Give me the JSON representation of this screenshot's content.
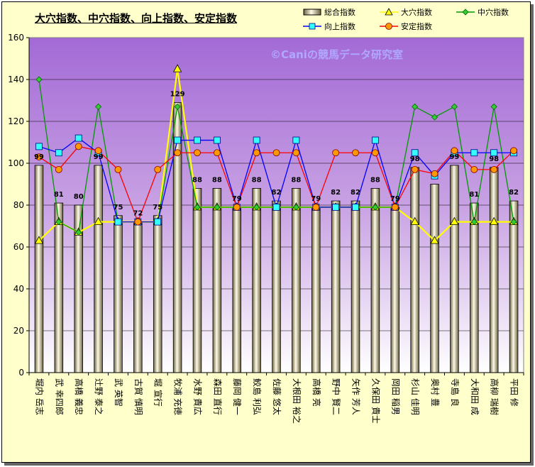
{
  "chart_data": {
    "type": "bar",
    "title": "大穴指数、中穴指数、向上指数、安定指数",
    "watermark": "©Caniの競馬データ研究室",
    "ylim": [
      0,
      160
    ],
    "yticks": [
      0,
      20,
      40,
      60,
      80,
      100,
      120,
      140,
      160
    ],
    "categories": [
      "堀内 岳志",
      "武 幸四郎",
      "高橋 義忠",
      "辻野 泰之",
      "武 英智",
      "古賀 慎明",
      "堀 宣行",
      "牧浦 充徳",
      "水野 貴広",
      "森田 直行",
      "藤岡 健一",
      "鮫島 利弘",
      "佐藤 悠太",
      "大根田 裕之",
      "高橋 亮",
      "野中 賢二",
      "矢作 芳人",
      "久保田 貴士",
      "岡田 稲男",
      "杉山 佳明",
      "奥村 豊",
      "寺島 良",
      "大和田 成",
      "高柳 瑞樹",
      "平田 修"
    ],
    "series": [
      {
        "name": "総合指数",
        "type": "bar",
        "color": "#e8dfc0",
        "values": [
          99,
          81,
          80,
          99,
          75,
          72,
          75,
          129,
          88,
          88,
          79,
          88,
          82,
          88,
          79,
          82,
          82,
          88,
          79,
          98,
          90,
          99,
          81,
          98,
          82
        ],
        "labels": [
          "99",
          "81",
          "80",
          "99",
          "75",
          "72",
          "75",
          "129",
          "88",
          "88",
          "79",
          "88",
          "82",
          "88",
          "79",
          "82",
          "82",
          "88",
          "79",
          "98",
          "",
          "99",
          "81",
          "98",
          "82"
        ]
      },
      {
        "name": "大穴指数",
        "type": "line",
        "color": "#ffff00",
        "marker": "triangle",
        "values": [
          63,
          72,
          67,
          72,
          72,
          72,
          72,
          145,
          79,
          79,
          79,
          79,
          79,
          79,
          79,
          79,
          79,
          79,
          79,
          72,
          63,
          72,
          72,
          72,
          72
        ]
      },
      {
        "name": "中穴指数",
        "type": "line",
        "color": "#009900",
        "marker": "diamond",
        "values": [
          140,
          72,
          67,
          127,
          72,
          72,
          72,
          127,
          79,
          79,
          79,
          79,
          79,
          79,
          79,
          79,
          79,
          79,
          79,
          127,
          122,
          127,
          72,
          127,
          72
        ]
      },
      {
        "name": "向上指数",
        "type": "line",
        "color": "#0000ff",
        "marker": "square",
        "values": [
          108,
          105,
          112,
          105,
          72,
          72,
          72,
          111,
          111,
          111,
          79,
          111,
          79,
          111,
          79,
          79,
          79,
          111,
          79,
          105,
          94,
          105,
          105,
          105,
          105
        ]
      },
      {
        "name": "安定指数",
        "type": "line",
        "color": "#ff0000",
        "marker": "circle",
        "values": [
          103,
          97,
          108,
          106,
          97,
          72,
          97,
          105,
          105,
          105,
          79,
          105,
          105,
          105,
          79,
          105,
          105,
          105,
          79,
          97,
          95,
          106,
          97,
          97,
          106
        ]
      }
    ]
  }
}
